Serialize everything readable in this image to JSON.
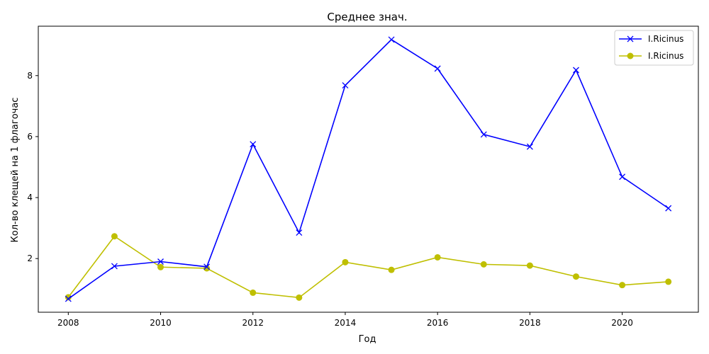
{
  "chart_data": {
    "type": "line",
    "title": "Среднее знач.",
    "xlabel": "Год",
    "ylabel": "Кол-во клещей на 1 флагочас",
    "x": [
      2008,
      2009,
      2010,
      2011,
      2012,
      2013,
      2014,
      2015,
      2016,
      2017,
      2018,
      2019,
      2020,
      2021
    ],
    "series": [
      {
        "name": "I.Ricinus",
        "color": "#0000ff",
        "marker": "x",
        "values": [
          0.68,
          1.75,
          1.9,
          1.73,
          5.75,
          2.85,
          7.68,
          9.18,
          8.23,
          6.07,
          5.67,
          8.18,
          4.68,
          3.65
        ]
      },
      {
        "name": "I.Ricinus",
        "color": "#bfbf00",
        "marker": "o",
        "values": [
          0.73,
          2.73,
          1.72,
          1.68,
          0.88,
          0.72,
          1.88,
          1.63,
          2.04,
          1.81,
          1.77,
          1.41,
          1.13,
          1.24
        ]
      }
    ],
    "xticks": [
      "2008",
      "2010",
      "2012",
      "2014",
      "2016",
      "2018",
      "2020"
    ],
    "yticks": [
      "2",
      "4",
      "6",
      "8"
    ],
    "xlim": [
      2007.35,
      2021.65
    ],
    "ylim": [
      0.24,
      9.62
    ],
    "grid": false,
    "legend": "upper right"
  }
}
